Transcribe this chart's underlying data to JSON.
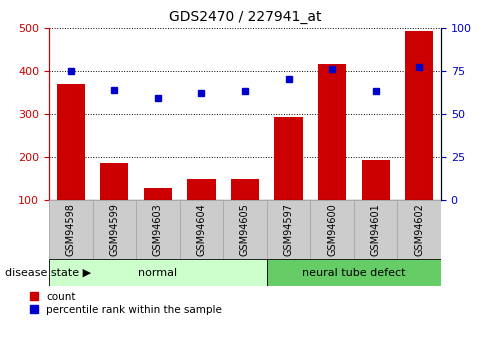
{
  "title": "GDS2470 / 227941_at",
  "categories": [
    "GSM94598",
    "GSM94599",
    "GSM94603",
    "GSM94604",
    "GSM94605",
    "GSM94597",
    "GSM94600",
    "GSM94601",
    "GSM94602"
  ],
  "counts": [
    370,
    185,
    128,
    148,
    150,
    292,
    415,
    193,
    492
  ],
  "percentiles": [
    75,
    64,
    59,
    62,
    63,
    70,
    76,
    63,
    77
  ],
  "ylim_left": [
    100,
    500
  ],
  "ylim_right": [
    0,
    100
  ],
  "yticks_left": [
    100,
    200,
    300,
    400,
    500
  ],
  "yticks_right": [
    0,
    25,
    50,
    75,
    100
  ],
  "bar_color": "#cc0000",
  "dot_color": "#0000cc",
  "bar_bottom": 100,
  "groups": [
    {
      "label": "normal",
      "indices": [
        0,
        1,
        2,
        3,
        4
      ],
      "color": "#ccffcc"
    },
    {
      "label": "neural tube defect",
      "indices": [
        5,
        6,
        7,
        8
      ],
      "color": "#66cc66"
    }
  ],
  "group_label": "disease state",
  "legend_count_label": "count",
  "legend_percentile_label": "percentile rank within the sample",
  "grid_color": "black",
  "bar_width": 0.65,
  "ax_label_color_left": "#cc0000",
  "ax_label_color_right": "#0000cc",
  "tick_box_color": "#cccccc",
  "tick_box_edge": "#aaaaaa"
}
